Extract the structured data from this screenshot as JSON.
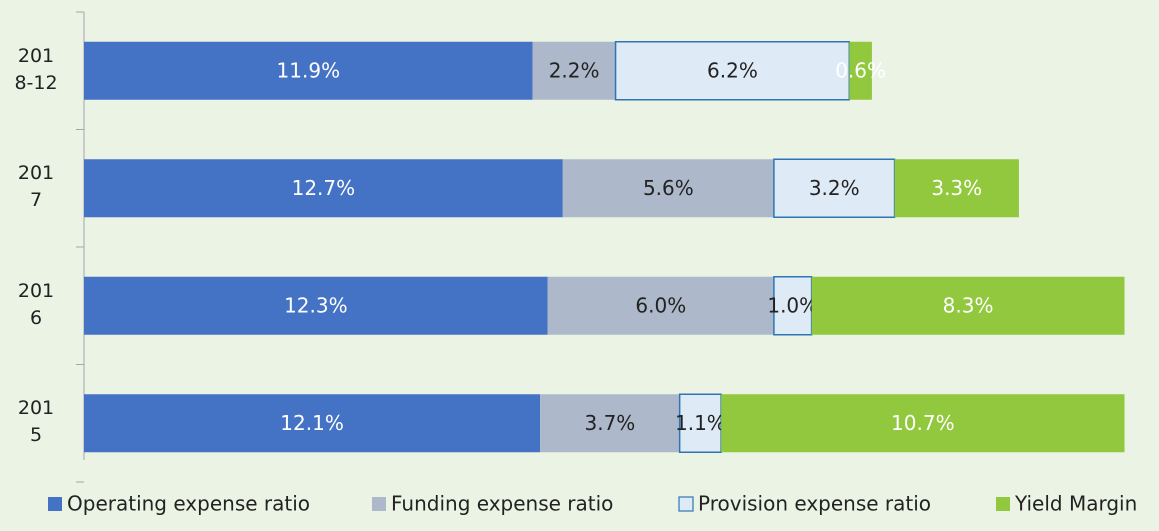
{
  "chart_data": {
    "type": "stacked_barh",
    "categories": [
      "2018-12",
      "2017",
      "2016",
      "2015"
    ],
    "series": [
      {
        "name": "Operating expense ratio",
        "color": "#4472c4",
        "label_color": "#ffffff",
        "values": [
          11.9,
          12.7,
          12.3,
          12.1
        ],
        "value_labels": [
          "11.9%",
          "12.7%",
          "12.3%",
          "12.1%"
        ]
      },
      {
        "name": "Funding expense ratio",
        "color": "#adb9ca",
        "label_color": "#222222",
        "values": [
          2.2,
          5.6,
          6.0,
          3.7
        ],
        "value_labels": [
          "2.2%",
          "5.6%",
          "6.0%",
          "3.7%"
        ]
      },
      {
        "name": "Provision expense ratio",
        "color": "#deebf7",
        "edgecolor": "#2e75b6",
        "label_color": "#222222",
        "values": [
          6.2,
          3.2,
          1.0,
          1.1
        ],
        "value_labels": [
          "6.2%",
          "3.2%",
          "1.0%",
          "1.1%"
        ]
      },
      {
        "name": "Yield Margin",
        "color": "#92c83e",
        "label_color": "#ffffff",
        "values": [
          0.6,
          3.3,
          8.3,
          10.7
        ],
        "value_labels": [
          "0.6%",
          "3.3%",
          "8.3%",
          "10.7%"
        ]
      }
    ],
    "legend": "bottom"
  }
}
